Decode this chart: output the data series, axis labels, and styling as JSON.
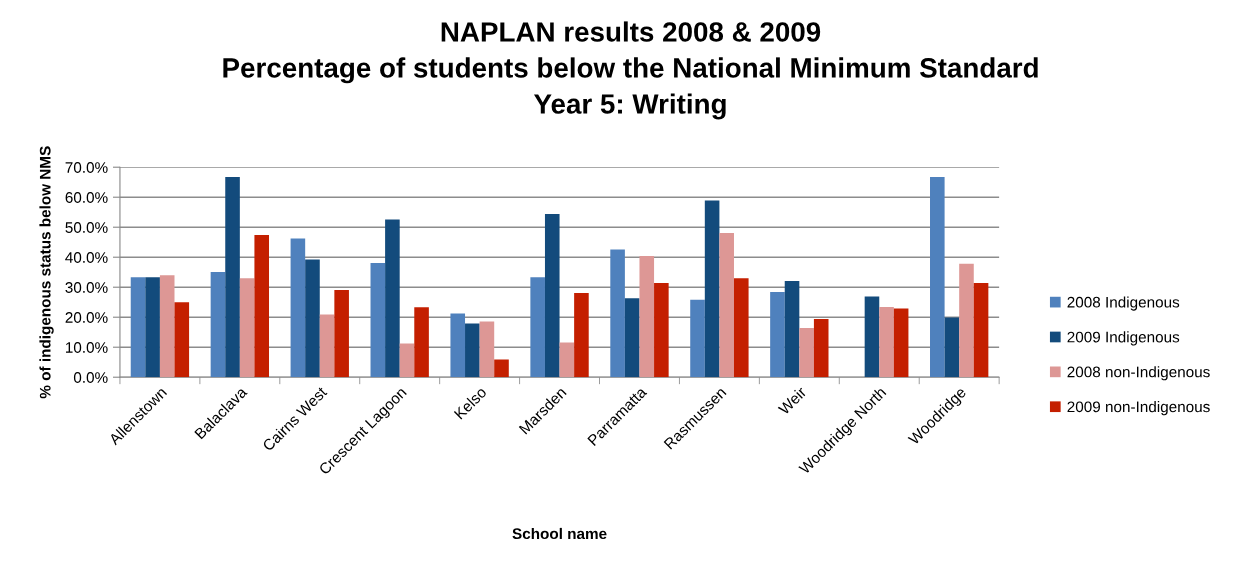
{
  "chart_data": {
    "type": "bar",
    "title": "NAPLAN results 2008 & 2009\nPercentage of students below the National Minimum Standard\nYear 5: Writing",
    "xlabel": "School name",
    "ylabel": "% of indigenous status below NMS",
    "categories": [
      "Allenstown",
      "Balaclava",
      "Cairns West",
      "Crescent Lagoon",
      "Kelso",
      "Marsden",
      "Parramatta",
      "Rasmussen",
      "Weir",
      "Woodridge North",
      "Woodridge"
    ],
    "series": [
      {
        "name": "2008 Indigenous",
        "color": "#4f81bd",
        "values": [
          33.3,
          35.1,
          46.2,
          38.1,
          21.2,
          33.3,
          42.6,
          25.8,
          28.4,
          null,
          66.7
        ]
      },
      {
        "name": "2009 Indigenous",
        "color": "#134b7c",
        "values": [
          33.3,
          66.7,
          39.2,
          52.6,
          17.9,
          54.4,
          26.3,
          58.9,
          32.1,
          26.9,
          19.9
        ]
      },
      {
        "name": "2008 non-Indigenous",
        "color": "#dd9795",
        "values": [
          34.0,
          33.0,
          20.9,
          11.2,
          18.6,
          11.6,
          40.4,
          48.1,
          16.4,
          23.4,
          37.8
        ]
      },
      {
        "name": "2009 non-Indigenous",
        "color": "#c41f00",
        "values": [
          25.0,
          47.4,
          29.1,
          23.3,
          5.9,
          28.1,
          31.4,
          33.0,
          19.4,
          22.9,
          31.4
        ]
      }
    ],
    "ylim": [
      0,
      70
    ],
    "yticks": [
      {
        "value": 0,
        "label": "0.0%"
      },
      {
        "value": 10,
        "label": "10.0%"
      },
      {
        "value": 20,
        "label": "20.0%"
      },
      {
        "value": 30,
        "label": "30.0%"
      },
      {
        "value": 40,
        "label": "40.0%"
      },
      {
        "value": 50,
        "label": "50.0%"
      },
      {
        "value": 60,
        "label": "60.0%"
      },
      {
        "value": 70,
        "label": "70.0%"
      }
    ],
    "grid": "y",
    "legend": "right"
  }
}
